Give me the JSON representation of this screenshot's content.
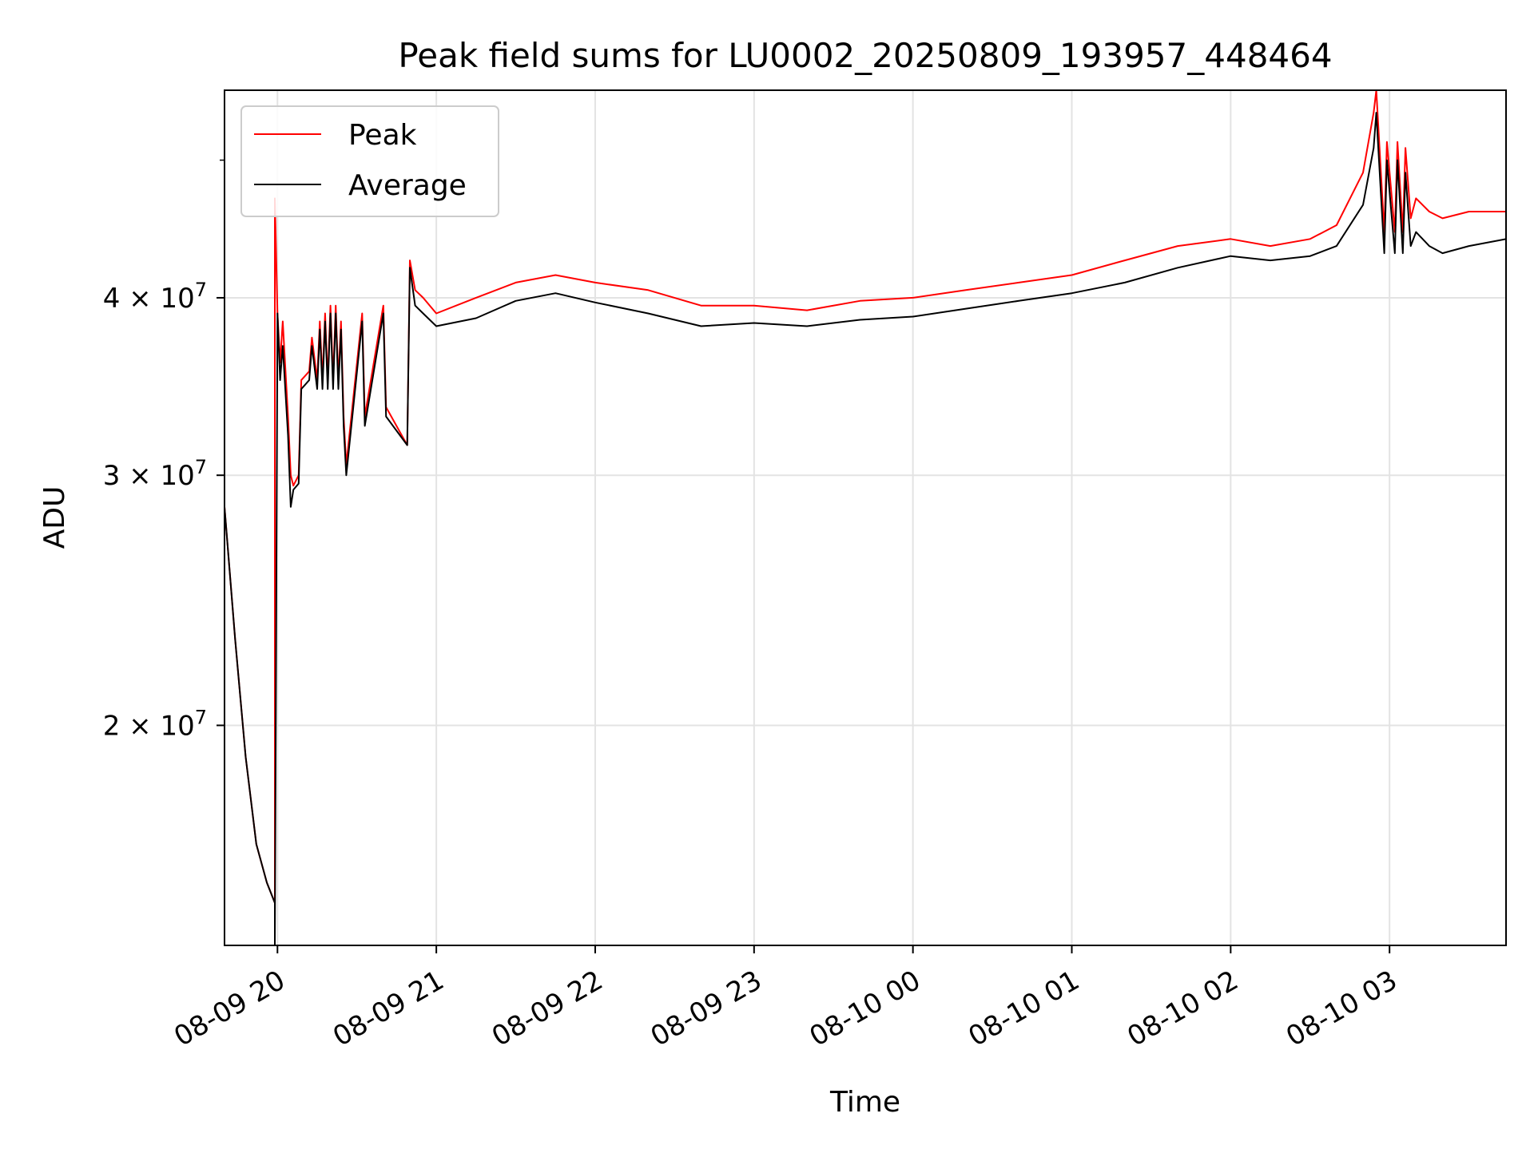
{
  "chart_data": {
    "type": "line",
    "title": "Peak field sums for LU0002_20250809_193957_448464",
    "xlabel": "Time",
    "ylabel": "ADU",
    "yscale": "log",
    "grid": true,
    "legend_position": "top-left",
    "xlim": [
      "2025-08-09 19:40",
      "2025-08-10 03:44"
    ],
    "ylim": [
      14000000,
      56000000
    ],
    "x_ticks": [
      {
        "value": "2025-08-09 20:00",
        "label": "08-09 20"
      },
      {
        "value": "2025-08-09 21:00",
        "label": "08-09 21"
      },
      {
        "value": "2025-08-09 22:00",
        "label": "08-09 22"
      },
      {
        "value": "2025-08-09 23:00",
        "label": "08-09 23"
      },
      {
        "value": "2025-08-10 00:00",
        "label": "08-10 00"
      },
      {
        "value": "2025-08-10 01:00",
        "label": "08-10 01"
      },
      {
        "value": "2025-08-10 02:00",
        "label": "08-10 02"
      },
      {
        "value": "2025-08-10 03:00",
        "label": "08-10 03"
      }
    ],
    "y_ticks": [
      {
        "value": 20000000,
        "mantissa": "2",
        "base": "10",
        "exp": "7"
      },
      {
        "value": 30000000,
        "mantissa": "3",
        "base": "10",
        "exp": "7"
      },
      {
        "value": 40000000,
        "mantissa": "4",
        "base": "10",
        "exp": "7"
      }
    ],
    "series": [
      {
        "name": "Peak",
        "color": "#ff0000",
        "x": [
          "2025-08-09 19:40",
          "2025-08-09 19:44",
          "2025-08-09 19:48",
          "2025-08-09 19:52",
          "2025-08-09 19:56",
          "2025-08-09 19:59",
          "2025-08-09 19:59",
          "2025-08-09 20:00",
          "2025-08-09 20:01",
          "2025-08-09 20:02",
          "2025-08-09 20:04",
          "2025-08-09 20:05",
          "2025-08-09 20:06",
          "2025-08-09 20:08",
          "2025-08-09 20:09",
          "2025-08-09 20:12",
          "2025-08-09 20:13",
          "2025-08-09 20:15",
          "2025-08-09 20:16",
          "2025-08-09 20:17",
          "2025-08-09 20:18",
          "2025-08-09 20:19",
          "2025-08-09 20:20",
          "2025-08-09 20:21",
          "2025-08-09 20:22",
          "2025-08-09 20:23",
          "2025-08-09 20:24",
          "2025-08-09 20:25",
          "2025-08-09 20:26",
          "2025-08-09 20:32",
          "2025-08-09 20:33",
          "2025-08-09 20:40",
          "2025-08-09 20:41",
          "2025-08-09 20:49",
          "2025-08-09 20:50",
          "2025-08-09 20:52",
          "2025-08-09 20:55",
          "2025-08-09 21:00",
          "2025-08-09 21:15",
          "2025-08-09 21:30",
          "2025-08-09 21:45",
          "2025-08-09 22:00",
          "2025-08-09 22:20",
          "2025-08-09 22:40",
          "2025-08-09 23:00",
          "2025-08-09 23:20",
          "2025-08-09 23:40",
          "2025-08-10 00:00",
          "2025-08-10 00:20",
          "2025-08-10 00:40",
          "2025-08-10 01:00",
          "2025-08-10 01:20",
          "2025-08-10 01:40",
          "2025-08-10 02:00",
          "2025-08-10 02:15",
          "2025-08-10 02:30",
          "2025-08-10 02:40",
          "2025-08-10 02:50",
          "2025-08-10 02:54",
          "2025-08-10 02:55",
          "2025-08-10 02:58",
          "2025-08-10 02:59",
          "2025-08-10 03:02",
          "2025-08-10 03:03",
          "2025-08-10 03:05",
          "2025-08-10 03:06",
          "2025-08-10 03:08",
          "2025-08-10 03:10",
          "2025-08-10 03:15",
          "2025-08-10 03:20",
          "2025-08-10 03:30",
          "2025-08-10 03:44"
        ],
        "y": [
          28500000,
          23000000,
          19000000,
          16500000,
          15500000,
          15000000,
          47000000,
          39000000,
          36000000,
          38500000,
          33000000,
          30000000,
          29500000,
          30000000,
          35000000,
          35500000,
          37500000,
          35000000,
          38500000,
          35000000,
          39000000,
          35000000,
          39500000,
          35000000,
          39500000,
          35000000,
          38500000,
          33000000,
          30500000,
          39000000,
          33000000,
          39500000,
          33500000,
          31500000,
          42500000,
          40500000,
          40000000,
          39000000,
          40000000,
          41000000,
          41500000,
          41000000,
          40500000,
          39500000,
          39500000,
          39200000,
          39800000,
          40000000,
          40500000,
          41000000,
          41500000,
          42500000,
          43500000,
          44000000,
          43500000,
          44000000,
          45000000,
          49000000,
          54000000,
          56000000,
          44500000,
          51500000,
          44500000,
          51500000,
          44500000,
          51000000,
          45500000,
          47000000,
          46000000,
          45500000,
          46000000,
          46000000
        ]
      },
      {
        "name": "Average",
        "color": "#000000",
        "x": [
          "2025-08-09 19:40",
          "2025-08-09 19:44",
          "2025-08-09 19:48",
          "2025-08-09 19:52",
          "2025-08-09 19:56",
          "2025-08-09 19:59",
          "2025-08-09 19:59",
          "2025-08-09 20:00",
          "2025-08-09 20:01",
          "2025-08-09 20:02",
          "2025-08-09 20:04",
          "2025-08-09 20:05",
          "2025-08-09 20:06",
          "2025-08-09 20:08",
          "2025-08-09 20:09",
          "2025-08-09 20:12",
          "2025-08-09 20:13",
          "2025-08-09 20:15",
          "2025-08-09 20:16",
          "2025-08-09 20:17",
          "2025-08-09 20:18",
          "2025-08-09 20:19",
          "2025-08-09 20:20",
          "2025-08-09 20:21",
          "2025-08-09 20:22",
          "2025-08-09 20:23",
          "2025-08-09 20:24",
          "2025-08-09 20:25",
          "2025-08-09 20:26",
          "2025-08-09 20:32",
          "2025-08-09 20:33",
          "2025-08-09 20:40",
          "2025-08-09 20:41",
          "2025-08-09 20:49",
          "2025-08-09 20:50",
          "2025-08-09 20:52",
          "2025-08-09 20:55",
          "2025-08-09 21:00",
          "2025-08-09 21:15",
          "2025-08-09 21:30",
          "2025-08-09 21:45",
          "2025-08-09 22:00",
          "2025-08-09 22:20",
          "2025-08-09 22:40",
          "2025-08-09 23:00",
          "2025-08-09 23:20",
          "2025-08-09 23:40",
          "2025-08-10 00:00",
          "2025-08-10 00:20",
          "2025-08-10 00:40",
          "2025-08-10 01:00",
          "2025-08-10 01:20",
          "2025-08-10 01:40",
          "2025-08-10 02:00",
          "2025-08-10 02:15",
          "2025-08-10 02:30",
          "2025-08-10 02:40",
          "2025-08-10 02:50",
          "2025-08-10 02:54",
          "2025-08-10 02:55",
          "2025-08-10 02:58",
          "2025-08-10 02:59",
          "2025-08-10 03:02",
          "2025-08-10 03:03",
          "2025-08-10 03:05",
          "2025-08-10 03:06",
          "2025-08-10 03:08",
          "2025-08-10 03:10",
          "2025-08-10 03:15",
          "2025-08-10 03:20",
          "2025-08-10 03:30",
          "2025-08-10 03:44"
        ],
        "y": [
          28500000,
          23000000,
          19000000,
          16500000,
          15500000,
          15000000,
          14000000,
          39000000,
          35000000,
          37000000,
          32000000,
          28500000,
          29300000,
          29600000,
          34500000,
          35000000,
          37000000,
          34500000,
          38000000,
          34500000,
          38500000,
          34500000,
          39000000,
          34500000,
          39000000,
          34500000,
          38000000,
          32500000,
          30000000,
          38500000,
          32500000,
          39000000,
          33000000,
          31500000,
          42000000,
          39500000,
          39000000,
          38200000,
          38700000,
          39800000,
          40300000,
          39700000,
          39000000,
          38200000,
          38400000,
          38200000,
          38600000,
          38800000,
          39300000,
          39800000,
          40300000,
          41000000,
          42000000,
          42800000,
          42500000,
          42800000,
          43500000,
          46500000,
          51000000,
          54000000,
          43000000,
          50000000,
          43000000,
          50000000,
          43000000,
          49000000,
          43500000,
          44500000,
          43500000,
          43000000,
          43500000,
          44000000
        ]
      }
    ]
  }
}
